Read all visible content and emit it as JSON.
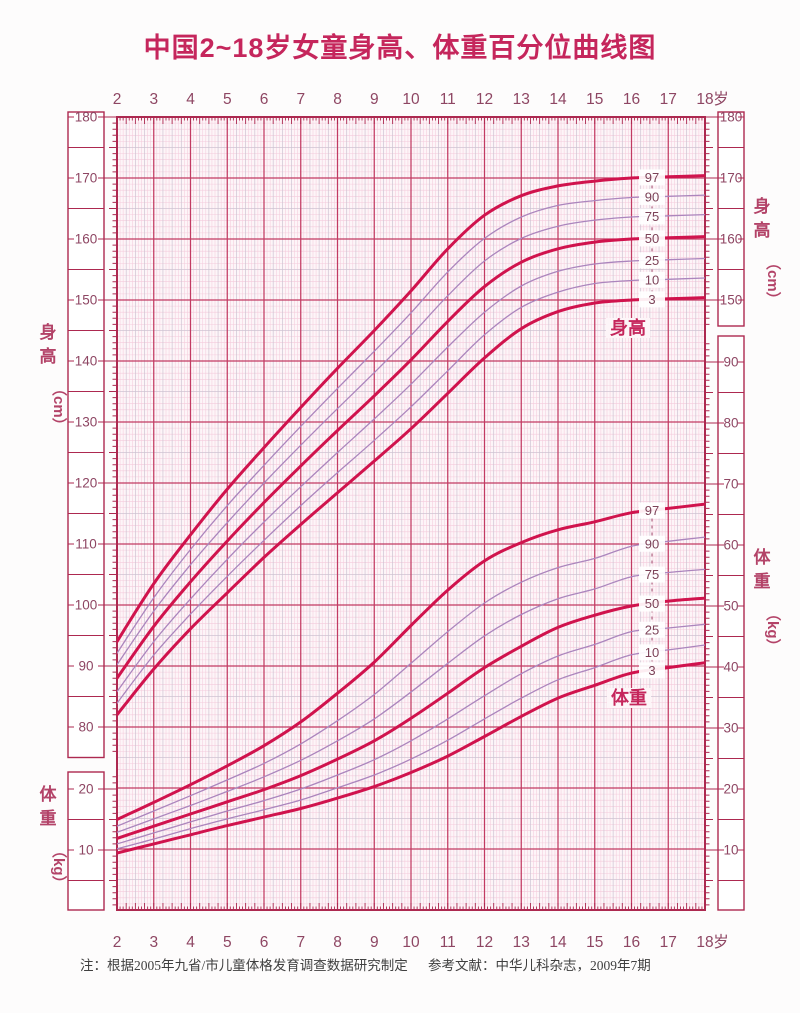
{
  "title": "中国2~18岁女童身高、体重百分位曲线图",
  "axes": {
    "age_labels": [
      "2",
      "3",
      "4",
      "5",
      "6",
      "7",
      "8",
      "9",
      "10",
      "11",
      "12",
      "13",
      "14",
      "15",
      "16",
      "17",
      "18"
    ],
    "age_unit": "岁",
    "left_height": {
      "title": "身高（cm）",
      "labels": [
        "180",
        "170",
        "160",
        "150",
        "140",
        "130",
        "120",
        "110",
        "100",
        "90",
        "80"
      ]
    },
    "left_weight": {
      "title": "体重（kg）",
      "labels": [
        "20",
        "10"
      ]
    },
    "right_height": {
      "title": "身高（cm）",
      "labels": [
        "180",
        "170",
        "160",
        "150"
      ]
    },
    "right_weight": {
      "title": "体重（kg）",
      "labels": [
        "90",
        "80",
        "70",
        "60",
        "50",
        "40",
        "30",
        "20",
        "10"
      ]
    }
  },
  "curve_group_labels": {
    "height": "身高",
    "weight": "体重"
  },
  "percentile_labels": [
    "97",
    "90",
    "75",
    "50",
    "25",
    "10",
    "3"
  ],
  "footnotes": {
    "left": "注：根据2005年九省/市儿童体格发育调查数据研究制定",
    "right": "参考文献：中华儿科杂志，2009年7期"
  },
  "colors": {
    "accent": "#c5265c",
    "bold_curve": "#d0134d",
    "thin_curve": "#ab85bd",
    "grid_major": "#c23a62",
    "grid_medium": "#cfc3d2",
    "grid_minor": "#f4cbdc",
    "plot_bg": "#fdf5f8",
    "frame": "#ad2950",
    "tick_label": "#8e4663",
    "percentile_label": "#7c4258",
    "axis_title": "#b34368",
    "footnote_text": "#3f3f3f"
  },
  "chart_data": {
    "type": "line",
    "title": "中国2~18岁女童身高、体重百分位曲线图",
    "x": [
      2,
      3,
      4,
      5,
      6,
      7,
      8,
      9,
      10,
      11,
      12,
      13,
      14,
      15,
      16,
      17,
      18
    ],
    "x_unit": "岁",
    "percentiles": [
      97,
      90,
      75,
      50,
      25,
      10,
      3
    ],
    "height_unit": "cm",
    "weight_unit": "kg",
    "height_axis_range": [
      80,
      180
    ],
    "weight_axis_range": [
      10,
      90
    ],
    "grid": true,
    "legend_position": "inline-right",
    "height_series": [
      {
        "name": "P97",
        "values": [
          94.0,
          103.5,
          111.5,
          119.0,
          125.8,
          132.4,
          138.8,
          145.0,
          151.5,
          158.4,
          163.9,
          167.1,
          168.7,
          169.5,
          170.0,
          170.2,
          170.4
        ]
      },
      {
        "name": "P90",
        "values": [
          92.1,
          101.2,
          109.1,
          116.3,
          122.9,
          129.3,
          135.5,
          141.6,
          147.9,
          154.6,
          160.1,
          163.6,
          165.5,
          166.3,
          166.8,
          167.0,
          167.2
        ]
      },
      {
        "name": "P75",
        "values": [
          90.2,
          99.0,
          106.6,
          113.5,
          120.0,
          126.2,
          132.2,
          138.1,
          144.2,
          150.7,
          156.4,
          160.1,
          162.1,
          163.1,
          163.6,
          163.8,
          164.0
        ]
      },
      {
        "name": "P50",
        "values": [
          88.0,
          96.5,
          103.8,
          110.5,
          116.8,
          122.8,
          128.6,
          134.3,
          140.2,
          146.5,
          152.2,
          156.2,
          158.4,
          159.5,
          160.0,
          160.2,
          160.4
        ]
      },
      {
        "name": "P25",
        "values": [
          85.8,
          94.0,
          101.0,
          107.5,
          113.6,
          119.4,
          125.0,
          130.5,
          136.2,
          142.3,
          148.0,
          152.3,
          154.7,
          155.9,
          156.4,
          156.6,
          156.8
        ]
      },
      {
        "name": "P10",
        "values": [
          83.9,
          91.8,
          98.5,
          104.7,
          110.6,
          116.3,
          121.7,
          127.0,
          132.5,
          138.4,
          144.3,
          148.8,
          151.3,
          152.7,
          153.2,
          153.4,
          153.6
        ]
      },
      {
        "name": "P3",
        "values": [
          82.0,
          89.5,
          96.1,
          102.0,
          107.8,
          113.2,
          118.4,
          123.6,
          128.9,
          134.7,
          140.5,
          145.3,
          148.1,
          149.5,
          150.0,
          150.2,
          150.4
        ]
      }
    ],
    "weight_series": [
      {
        "name": "P97",
        "values": [
          15.0,
          17.8,
          20.7,
          23.8,
          27.1,
          31.0,
          35.7,
          40.8,
          46.8,
          52.6,
          57.4,
          60.4,
          62.5,
          63.8,
          65.3,
          66.0,
          66.7
        ]
      },
      {
        "name": "P90",
        "values": [
          13.9,
          16.4,
          18.9,
          21.5,
          24.2,
          27.4,
          31.2,
          35.5,
          40.6,
          45.8,
          50.5,
          53.9,
          56.3,
          57.8,
          59.8,
          60.6,
          61.3
        ]
      },
      {
        "name": "P75",
        "values": [
          12.9,
          15.1,
          17.3,
          19.6,
          22.0,
          24.7,
          27.9,
          31.5,
          35.9,
          40.6,
          45.1,
          48.6,
          51.2,
          52.8,
          54.8,
          55.5,
          56.0
        ]
      },
      {
        "name": "P50",
        "values": [
          11.9,
          13.9,
          15.9,
          17.9,
          19.9,
          22.2,
          24.9,
          27.9,
          31.6,
          35.7,
          39.9,
          43.4,
          46.5,
          48.5,
          50.0,
          50.8,
          51.3
        ]
      },
      {
        "name": "P25",
        "values": [
          11.0,
          12.8,
          14.6,
          16.4,
          18.1,
          20.0,
          22.3,
          24.8,
          27.9,
          31.5,
          35.3,
          38.9,
          41.8,
          43.7,
          45.8,
          46.4,
          47.0
        ]
      },
      {
        "name": "P10",
        "values": [
          10.2,
          11.8,
          13.5,
          15.1,
          16.6,
          18.2,
          20.2,
          22.3,
          24.9,
          28.0,
          31.5,
          34.9,
          37.9,
          39.9,
          42.0,
          42.8,
          43.6
        ]
      },
      {
        "name": "P3",
        "values": [
          9.5,
          11.0,
          12.5,
          14.0,
          15.4,
          16.8,
          18.5,
          20.4,
          22.7,
          25.4,
          28.6,
          31.9,
          34.9,
          37.0,
          39.0,
          39.9,
          40.7
        ]
      }
    ]
  }
}
